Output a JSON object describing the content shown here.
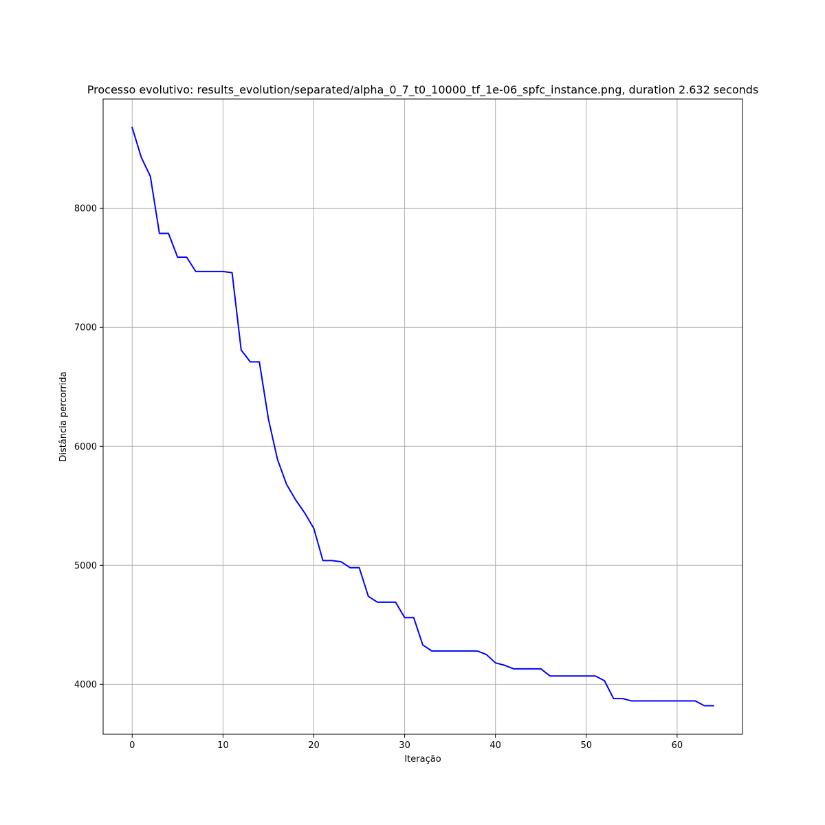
{
  "chart_data": {
    "type": "line",
    "title": "Processo evolutivo: results_evolution/separated/alpha_0_7_t0_10000_tf_1e-06_spfc_instance.png, duration 2.632 seconds",
    "xlabel": "Iteração",
    "ylabel": "Distância percorrida",
    "xlim": [
      -3.2,
      67.2
    ],
    "ylim": [
      3580,
      8920
    ],
    "xticks": [
      0,
      10,
      20,
      30,
      40,
      50,
      60
    ],
    "yticks": [
      4000,
      5000,
      6000,
      7000,
      8000
    ],
    "grid": true,
    "series": [
      {
        "color": "#0000ff",
        "x": [
          0,
          1,
          2,
          3,
          4,
          5,
          6,
          7,
          8,
          9,
          10,
          11,
          12,
          13,
          14,
          15,
          16,
          17,
          18,
          19,
          20,
          21,
          22,
          23,
          24,
          25,
          26,
          27,
          28,
          29,
          30,
          31,
          32,
          33,
          34,
          35,
          36,
          37,
          38,
          39,
          40,
          41,
          42,
          43,
          44,
          45,
          46,
          47,
          48,
          49,
          50,
          51,
          52,
          53,
          54,
          55,
          56,
          57,
          58,
          59,
          60,
          61,
          62,
          63,
          64
        ],
        "y": [
          8680,
          8430,
          8270,
          7790,
          7790,
          7590,
          7590,
          7470,
          7470,
          7470,
          7470,
          7460,
          6810,
          6710,
          6710,
          6230,
          5890,
          5680,
          5550,
          5440,
          5310,
          5040,
          5040,
          5030,
          4980,
          4980,
          4740,
          4690,
          4690,
          4690,
          4560,
          4560,
          4330,
          4280,
          4280,
          4280,
          4280,
          4280,
          4280,
          4250,
          4180,
          4160,
          4130,
          4130,
          4130,
          4130,
          4070,
          4070,
          4070,
          4070,
          4070,
          4070,
          4030,
          3880,
          3880,
          3860,
          3860,
          3860,
          3860,
          3860,
          3860,
          3860,
          3860,
          3820,
          3820
        ]
      }
    ]
  }
}
